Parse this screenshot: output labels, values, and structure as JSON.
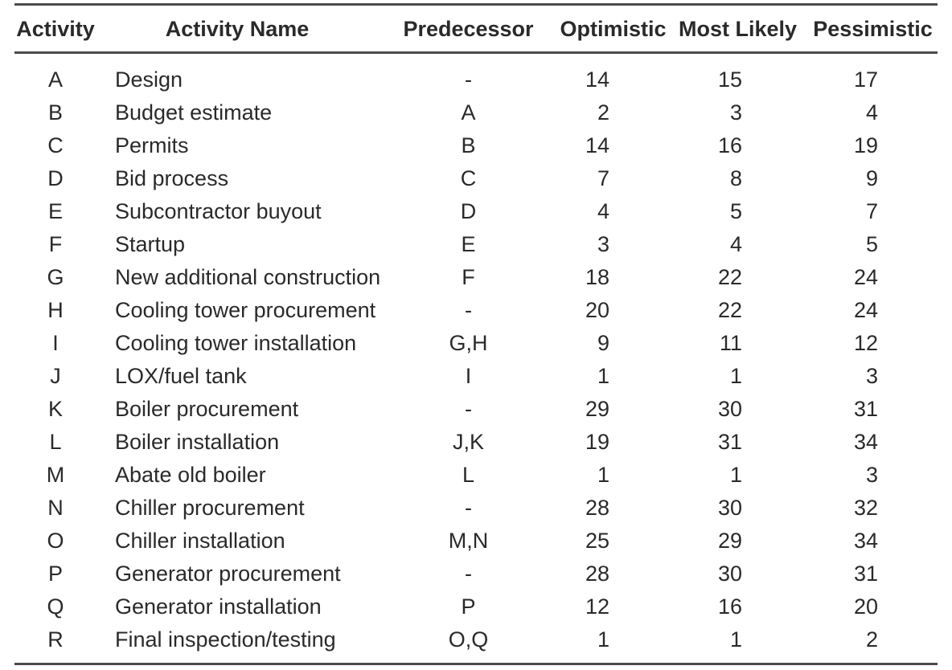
{
  "table": {
    "columns": [
      {
        "key": "activity",
        "label": "Activity"
      },
      {
        "key": "name",
        "label": "Activity Name"
      },
      {
        "key": "predecessor",
        "label": "Predecessor"
      },
      {
        "key": "optimistic",
        "label": "Optimistic"
      },
      {
        "key": "most_likely",
        "label": "Most Likely"
      },
      {
        "key": "pessimistic",
        "label": "Pessimistic"
      }
    ],
    "rows": [
      {
        "activity": "A",
        "name": "Design",
        "predecessor": "-",
        "optimistic": 14,
        "most_likely": 15,
        "pessimistic": 17
      },
      {
        "activity": "B",
        "name": "Budget estimate",
        "predecessor": "A",
        "optimistic": 2,
        "most_likely": 3,
        "pessimistic": 4
      },
      {
        "activity": "C",
        "name": "Permits",
        "predecessor": "B",
        "optimistic": 14,
        "most_likely": 16,
        "pessimistic": 19
      },
      {
        "activity": "D",
        "name": "Bid process",
        "predecessor": "C",
        "optimistic": 7,
        "most_likely": 8,
        "pessimistic": 9
      },
      {
        "activity": "E",
        "name": "Subcontractor buyout",
        "predecessor": "D",
        "optimistic": 4,
        "most_likely": 5,
        "pessimistic": 7
      },
      {
        "activity": "F",
        "name": "Startup",
        "predecessor": "E",
        "optimistic": 3,
        "most_likely": 4,
        "pessimistic": 5
      },
      {
        "activity": "G",
        "name": "New additional construction",
        "predecessor": "F",
        "optimistic": 18,
        "most_likely": 22,
        "pessimistic": 24
      },
      {
        "activity": "H",
        "name": "Cooling tower procurement",
        "predecessor": "-",
        "optimistic": 20,
        "most_likely": 22,
        "pessimistic": 24
      },
      {
        "activity": "I",
        "name": "Cooling tower installation",
        "predecessor": "G,H",
        "optimistic": 9,
        "most_likely": 11,
        "pessimistic": 12
      },
      {
        "activity": "J",
        "name": "LOX/fuel tank",
        "predecessor": "I",
        "optimistic": 1,
        "most_likely": 1,
        "pessimistic": 3
      },
      {
        "activity": "K",
        "name": "Boiler procurement",
        "predecessor": "-",
        "optimistic": 29,
        "most_likely": 30,
        "pessimistic": 31
      },
      {
        "activity": "L",
        "name": "Boiler installation",
        "predecessor": "J,K",
        "optimistic": 19,
        "most_likely": 31,
        "pessimistic": 34
      },
      {
        "activity": "M",
        "name": "Abate old boiler",
        "predecessor": "L",
        "optimistic": 1,
        "most_likely": 1,
        "pessimistic": 3
      },
      {
        "activity": "N",
        "name": "Chiller procurement",
        "predecessor": "-",
        "optimistic": 28,
        "most_likely": 30,
        "pessimistic": 32
      },
      {
        "activity": "O",
        "name": "Chiller installation",
        "predecessor": "M,N",
        "optimistic": 25,
        "most_likely": 29,
        "pessimistic": 34
      },
      {
        "activity": "P",
        "name": "Generator procurement",
        "predecessor": "-",
        "optimistic": 28,
        "most_likely": 30,
        "pessimistic": 31
      },
      {
        "activity": "Q",
        "name": "Generator installation",
        "predecessor": "P",
        "optimistic": 12,
        "most_likely": 16,
        "pessimistic": 20
      },
      {
        "activity": "R",
        "name": "Final inspection/testing",
        "predecessor": "O,Q",
        "optimistic": 1,
        "most_likely": 1,
        "pessimistic": 2
      }
    ]
  },
  "colors": {
    "text": "#2a2a2a",
    "rule": "#4c4c4e",
    "background": "#ffffff"
  }
}
